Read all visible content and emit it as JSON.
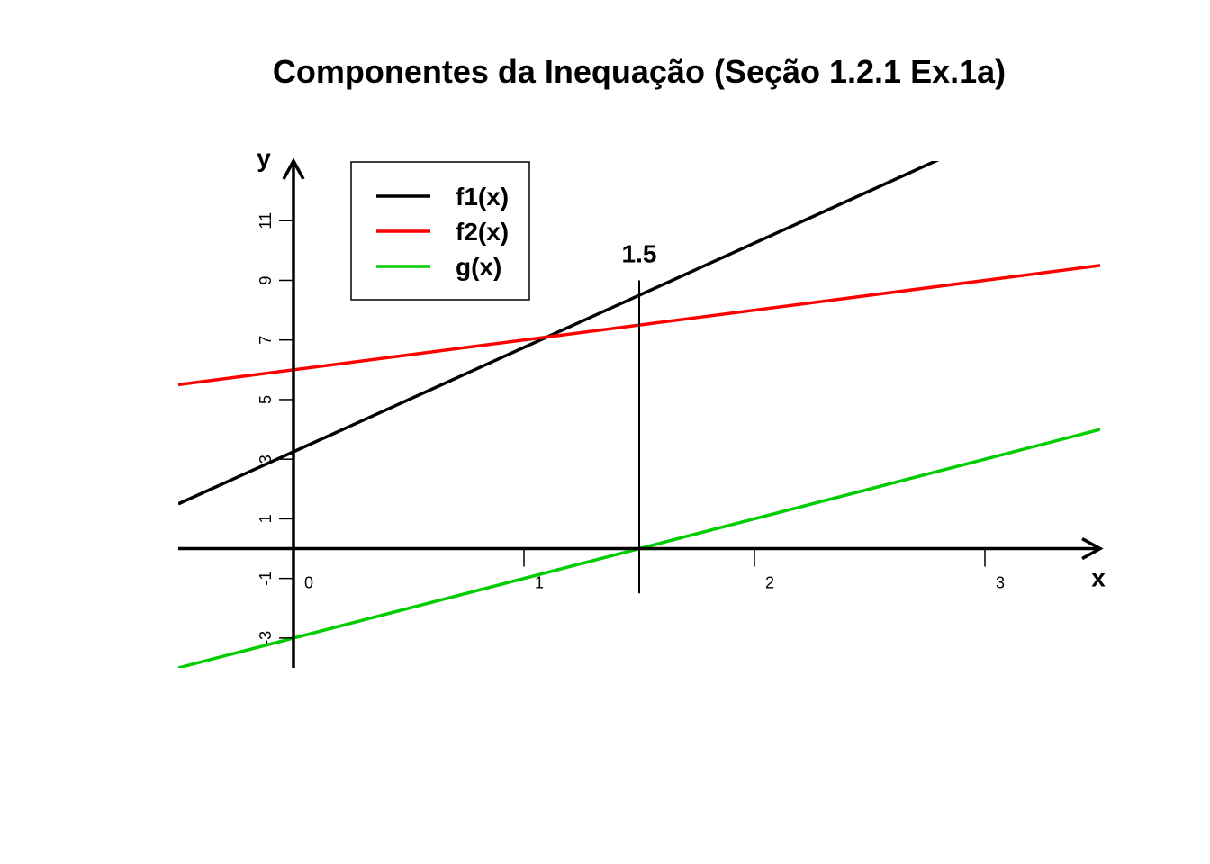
{
  "chart_data": {
    "type": "line",
    "title": "Componentes da Inequação (Seção 1.2.1 Ex.1a)",
    "xlabel": "x",
    "ylabel": "y",
    "xlim": [
      -0.5,
      3.5
    ],
    "ylim": [
      -4,
      13
    ],
    "x_ticks": [
      0,
      1,
      2,
      3
    ],
    "y_ticks": [
      -3,
      -1,
      1,
      3,
      5,
      7,
      9,
      11
    ],
    "grid": false,
    "legend_position": "top-left",
    "series": [
      {
        "name": "f1(x)",
        "color": "#000000",
        "points": [
          [
            -0.5,
            1.5
          ],
          [
            3.5,
            15.5
          ]
        ]
      },
      {
        "name": "f2(x)",
        "color": "#ff0000",
        "points": [
          [
            -0.5,
            5.5
          ],
          [
            3.5,
            9.5
          ]
        ]
      },
      {
        "name": "g(x)",
        "color": "#00cd00",
        "points": [
          [
            -0.5,
            -4
          ],
          [
            3.5,
            4
          ]
        ]
      }
    ],
    "annotations": [
      {
        "text": "1.5",
        "x": 1.5,
        "y_from": -1.5,
        "y_to": 9
      }
    ]
  }
}
